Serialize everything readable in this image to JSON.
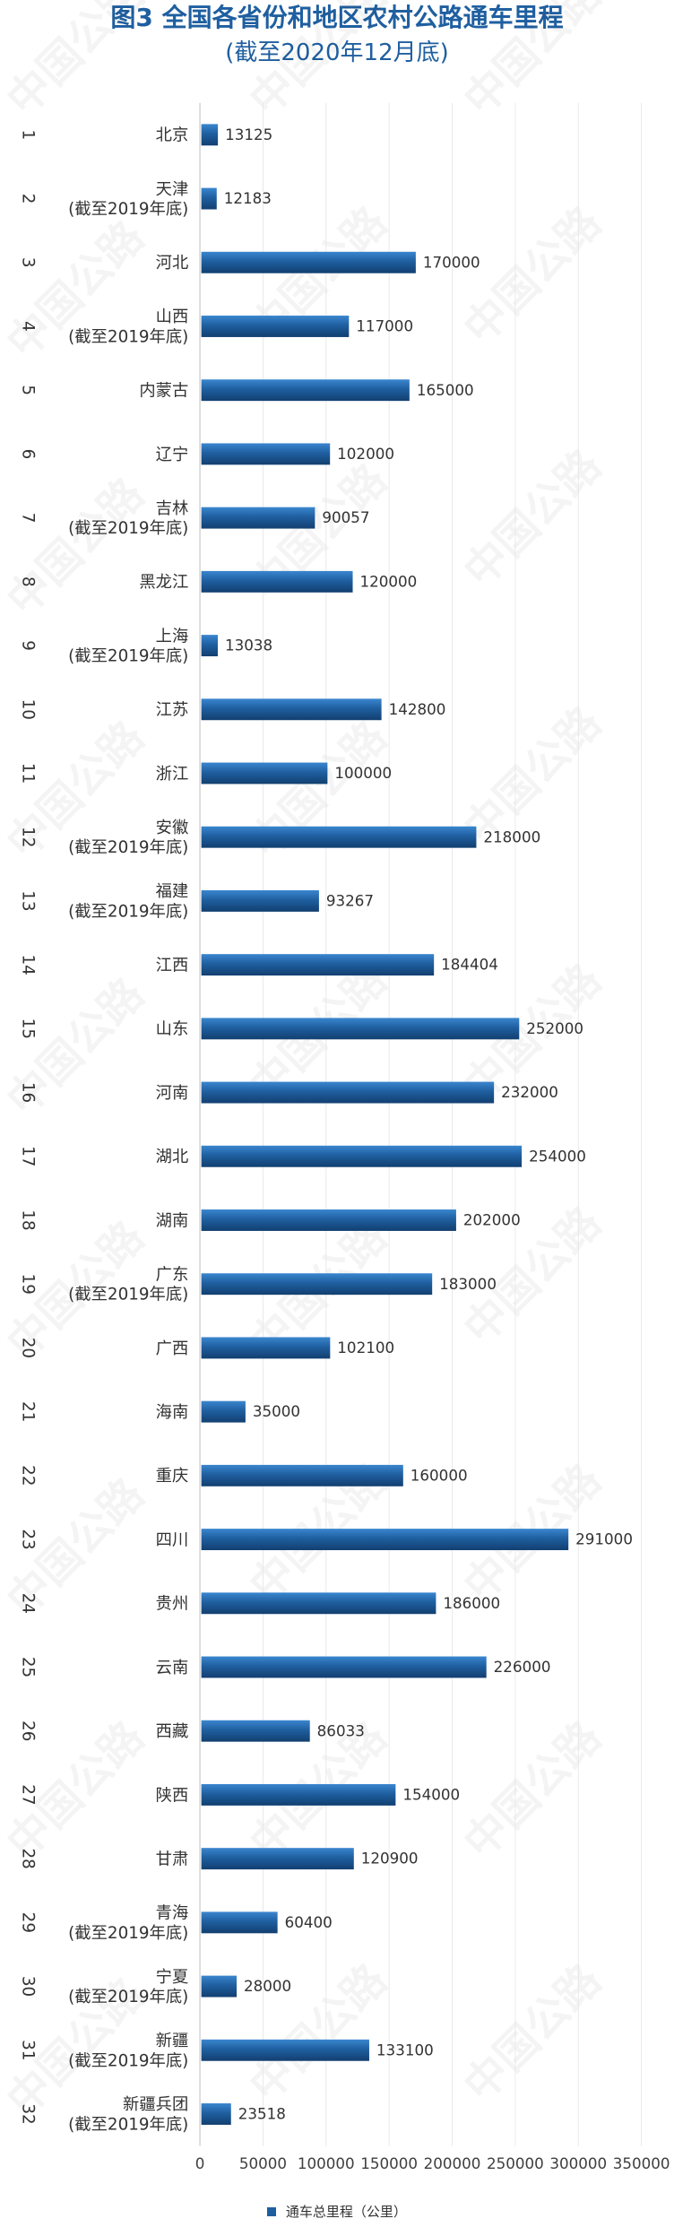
{
  "chart_data": {
    "type": "bar",
    "orientation": "horizontal",
    "title": "图3 全国各省份和地区农村公路通车里程",
    "subtitle": "(截至2020年12月底)",
    "legend": {
      "position": "bottom",
      "label": "通车总里程（公里）"
    },
    "watermark": "中国公路",
    "grid": true,
    "xlim": [
      0,
      350000
    ],
    "xticks": [
      "0",
      "50000",
      "100000",
      "150000",
      "200000",
      "250000",
      "300000",
      "350000"
    ],
    "categories": [
      {
        "index": "1",
        "name": "北京",
        "note": ""
      },
      {
        "index": "2",
        "name": "天津",
        "note": "(截至2019年底)"
      },
      {
        "index": "3",
        "name": "河北",
        "note": ""
      },
      {
        "index": "4",
        "name": "山西",
        "note": "(截至2019年底)"
      },
      {
        "index": "5",
        "name": "内蒙古",
        "note": ""
      },
      {
        "index": "6",
        "name": "辽宁",
        "note": ""
      },
      {
        "index": "7",
        "name": "吉林",
        "note": "(截至2019年底)"
      },
      {
        "index": "8",
        "name": "黑龙江",
        "note": ""
      },
      {
        "index": "9",
        "name": "上海",
        "note": "(截至2019年底)"
      },
      {
        "index": "10",
        "name": "江苏",
        "note": ""
      },
      {
        "index": "11",
        "name": "浙江",
        "note": ""
      },
      {
        "index": "12",
        "name": "安徽",
        "note": "(截至2019年底)"
      },
      {
        "index": "13",
        "name": "福建",
        "note": "(截至2019年底)"
      },
      {
        "index": "14",
        "name": "江西",
        "note": ""
      },
      {
        "index": "15",
        "name": "山东",
        "note": ""
      },
      {
        "index": "16",
        "name": "河南",
        "note": ""
      },
      {
        "index": "17",
        "name": "湖北",
        "note": ""
      },
      {
        "index": "18",
        "name": "湖南",
        "note": ""
      },
      {
        "index": "19",
        "name": "广东",
        "note": "(截至2019年底)"
      },
      {
        "index": "20",
        "name": "广西",
        "note": ""
      },
      {
        "index": "21",
        "name": "海南",
        "note": ""
      },
      {
        "index": "22",
        "name": "重庆",
        "note": ""
      },
      {
        "index": "23",
        "name": "四川",
        "note": ""
      },
      {
        "index": "24",
        "name": "贵州",
        "note": ""
      },
      {
        "index": "25",
        "name": "云南",
        "note": ""
      },
      {
        "index": "26",
        "name": "西藏",
        "note": ""
      },
      {
        "index": "27",
        "name": "陕西",
        "note": ""
      },
      {
        "index": "28",
        "name": "甘肃",
        "note": ""
      },
      {
        "index": "29",
        "name": "青海",
        "note": "(截至2019年底)"
      },
      {
        "index": "30",
        "name": "宁夏",
        "note": "(截至2019年底)"
      },
      {
        "index": "31",
        "name": "新疆",
        "note": "(截至2019年底)"
      },
      {
        "index": "32",
        "name": "新疆兵团",
        "note": "(截至2019年底)"
      }
    ],
    "series": [
      {
        "name": "通车总里程（公里）",
        "color": "#1f5fa0",
        "values": [
          13125,
          12183,
          170000,
          117000,
          165000,
          102000,
          90057,
          120000,
          13038,
          142800,
          100000,
          218000,
          93267,
          184404,
          252000,
          232000,
          254000,
          202000,
          183000,
          102100,
          35000,
          160000,
          291000,
          186000,
          226000,
          86033,
          154000,
          120900,
          60400,
          28000,
          133100,
          23518
        ]
      }
    ]
  }
}
